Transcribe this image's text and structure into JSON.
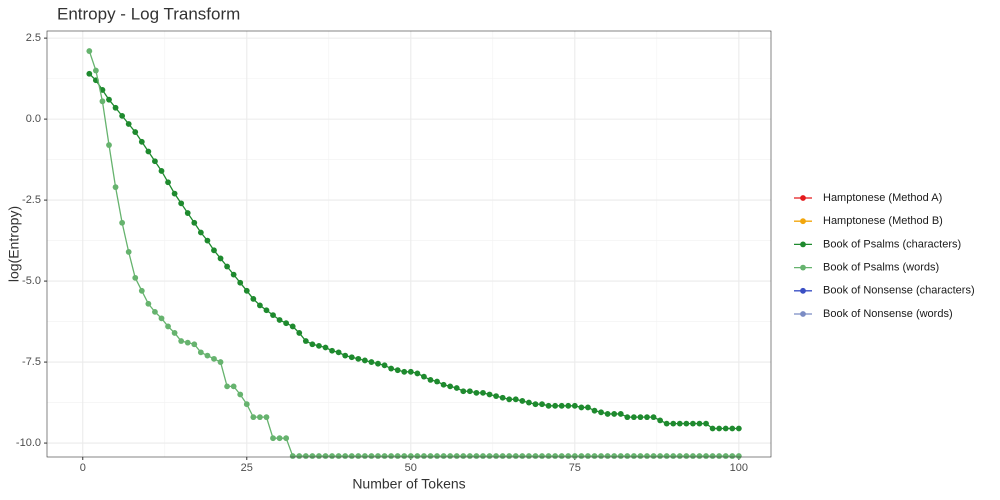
{
  "chart_data": {
    "type": "line",
    "title": "Entropy - Log Transform",
    "xlabel": "Number of Tokens",
    "ylabel": "log(Entropy)",
    "x": [
      1,
      2,
      3,
      4,
      5,
      6,
      7,
      8,
      9,
      10,
      11,
      12,
      13,
      14,
      15,
      16,
      17,
      18,
      19,
      20,
      21,
      22,
      23,
      24,
      25,
      26,
      27,
      28,
      29,
      30,
      31,
      32,
      33,
      34,
      35,
      36,
      37,
      38,
      39,
      40,
      41,
      42,
      43,
      44,
      45,
      46,
      47,
      48,
      49,
      50,
      51,
      52,
      53,
      54,
      55,
      56,
      57,
      58,
      59,
      60,
      61,
      62,
      63,
      64,
      65,
      66,
      67,
      68,
      69,
      70,
      71,
      72,
      73,
      74,
      75,
      76,
      77,
      78,
      79,
      80,
      81,
      82,
      83,
      84,
      85,
      86,
      87,
      88,
      89,
      90,
      91,
      92,
      93,
      94,
      95,
      96,
      97,
      98,
      99,
      100
    ],
    "xlim": [
      -5.45,
      104.9
    ],
    "xticks": [
      0,
      25,
      50,
      75,
      100
    ],
    "ylim": [
      -10.43,
      2.72
    ],
    "yticks": [
      {
        "value": -10,
        "label": "-10.0"
      },
      -7.5,
      {
        "value": -5,
        "label": "-5.0"
      },
      -2.5,
      {
        "value": 0,
        "label": "0.0"
      },
      2.5
    ],
    "grid": true,
    "legend": "right",
    "series": [
      {
        "name": "Hamptonese (Method A)",
        "color": "#e41a1c",
        "values": [
          null,
          null,
          null,
          null,
          null,
          null,
          null,
          null,
          null,
          null,
          null,
          null,
          null,
          null,
          null,
          null,
          null,
          null,
          null,
          null,
          null,
          null,
          null,
          null,
          null,
          null,
          null,
          null,
          null,
          null,
          null,
          null,
          null,
          null,
          null,
          null,
          null,
          null,
          null,
          null,
          null,
          null,
          null,
          null,
          null,
          null,
          null,
          null,
          null,
          null,
          null,
          null,
          null,
          null,
          null,
          null,
          null,
          null,
          null,
          null,
          null,
          null,
          null,
          null,
          null,
          null,
          null,
          null,
          null,
          null,
          null,
          null,
          null,
          null,
          null,
          null,
          null,
          null,
          null,
          null,
          null,
          null,
          null,
          null,
          null,
          null,
          null,
          null,
          null,
          null,
          null,
          null,
          null,
          null,
          null,
          null,
          null,
          null,
          null,
          null
        ]
      },
      {
        "name": "Hamptonese (Method B)",
        "color": "#f2a60c",
        "values": [
          null,
          null,
          null,
          null,
          null,
          null,
          null,
          null,
          null,
          null,
          null,
          null,
          null,
          null,
          null,
          null,
          null,
          null,
          null,
          null,
          null,
          null,
          null,
          null,
          null,
          null,
          null,
          null,
          null,
          null,
          null,
          null,
          null,
          null,
          null,
          null,
          null,
          null,
          null,
          null,
          null,
          null,
          null,
          null,
          null,
          null,
          null,
          null,
          null,
          null,
          null,
          null,
          null,
          null,
          null,
          null,
          null,
          null,
          null,
          null,
          null,
          null,
          null,
          null,
          null,
          null,
          null,
          null,
          null,
          null,
          null,
          null,
          null,
          null,
          null,
          null,
          null,
          null,
          null,
          null,
          null,
          null,
          null,
          null,
          null,
          null,
          null,
          null,
          null,
          null,
          null,
          null,
          null,
          null,
          null,
          null,
          null,
          null,
          null,
          null
        ]
      },
      {
        "name": "Book of Psalms (characters)",
        "color": "#1e8a2e",
        "values": [
          1.4,
          1.2,
          0.9,
          0.6,
          0.35,
          0.1,
          -0.15,
          -0.4,
          -0.7,
          -1.0,
          -1.3,
          -1.6,
          -1.95,
          -2.3,
          -2.6,
          -2.9,
          -3.2,
          -3.5,
          -3.75,
          -4.05,
          -4.3,
          -4.55,
          -4.8,
          -5.05,
          -5.3,
          -5.55,
          -5.75,
          -5.9,
          -6.05,
          -6.2,
          -6.3,
          -6.4,
          -6.6,
          -6.85,
          -6.95,
          -7.0,
          -7.05,
          -7.15,
          -7.2,
          -7.3,
          -7.35,
          -7.4,
          -7.45,
          -7.5,
          -7.55,
          -7.6,
          -7.7,
          -7.75,
          -7.8,
          -7.8,
          -7.85,
          -7.95,
          -8.05,
          -8.1,
          -8.2,
          -8.25,
          -8.3,
          -8.4,
          -8.4,
          -8.45,
          -8.45,
          -8.5,
          -8.55,
          -8.6,
          -8.65,
          -8.65,
          -8.7,
          -8.75,
          -8.8,
          -8.8,
          -8.85,
          -8.85,
          -8.85,
          -8.85,
          -8.85,
          -8.9,
          -8.9,
          -9.0,
          -9.05,
          -9.1,
          -9.1,
          -9.1,
          -9.2,
          -9.2,
          -9.2,
          -9.2,
          -9.2,
          -9.3,
          -9.4,
          -9.4,
          -9.4,
          -9.4,
          -9.4,
          -9.4,
          -9.4,
          -9.55,
          -9.55,
          -9.55,
          -9.55,
          -9.55
        ]
      },
      {
        "name": "Book of Psalms (words)",
        "color": "#66b36e",
        "values": [
          2.1,
          1.5,
          0.55,
          -0.8,
          -2.1,
          -3.2,
          -4.1,
          -4.9,
          -5.3,
          -5.7,
          -5.95,
          -6.15,
          -6.4,
          -6.6,
          -6.85,
          -6.9,
          -6.95,
          -7.2,
          -7.3,
          -7.4,
          -7.5,
          -8.25,
          -8.25,
          -8.5,
          -8.8,
          -9.2,
          -9.2,
          -9.2,
          -9.85,
          -9.85,
          -9.85,
          -10.4,
          -10.4,
          -10.4,
          -10.4,
          -10.4,
          -10.4,
          -10.4,
          -10.4,
          -10.4,
          -10.4,
          -10.4,
          -10.4,
          -10.4,
          -10.4,
          -10.4,
          -10.4,
          -10.4,
          -10.4,
          -10.4,
          -10.4,
          -10.4,
          -10.4,
          -10.4,
          -10.4,
          -10.4,
          -10.4,
          -10.4,
          -10.4,
          -10.4,
          -10.4,
          -10.4,
          -10.4,
          -10.4,
          -10.4,
          -10.4,
          -10.4,
          -10.4,
          -10.4,
          -10.4,
          -10.4,
          -10.4,
          -10.4,
          -10.4,
          -10.4,
          -10.4,
          -10.4,
          -10.4,
          -10.4,
          -10.4,
          -10.4,
          -10.4,
          -10.4,
          -10.4,
          -10.4,
          -10.4,
          -10.4,
          -10.4,
          -10.4,
          -10.4,
          -10.4,
          -10.4,
          -10.4,
          -10.4,
          -10.4,
          -10.4,
          -10.4,
          -10.4,
          -10.4,
          -10.4
        ]
      },
      {
        "name": "Book of Nonsense (characters)",
        "color": "#3a4fc4",
        "values": [
          null,
          null,
          null,
          null,
          null,
          null,
          null,
          null,
          null,
          null,
          null,
          null,
          null,
          null,
          null,
          null,
          null,
          null,
          null,
          null,
          null,
          null,
          null,
          null,
          null,
          null,
          null,
          null,
          null,
          null,
          null,
          null,
          null,
          null,
          null,
          null,
          null,
          null,
          null,
          null,
          null,
          null,
          null,
          null,
          null,
          null,
          null,
          null,
          null,
          null,
          null,
          null,
          null,
          null,
          null,
          null,
          null,
          null,
          null,
          null,
          null,
          null,
          null,
          null,
          null,
          null,
          null,
          null,
          null,
          null,
          null,
          null,
          null,
          null,
          null,
          null,
          null,
          null,
          null,
          null,
          null,
          null,
          null,
          null,
          null,
          null,
          null,
          null,
          null,
          null,
          null,
          null,
          null,
          null,
          null,
          null,
          null,
          null,
          null,
          null
        ]
      },
      {
        "name": "Book of Nonsense (words)",
        "color": "#7b8cc4",
        "values": [
          null,
          null,
          null,
          null,
          null,
          null,
          null,
          null,
          null,
          null,
          null,
          null,
          null,
          null,
          null,
          null,
          null,
          null,
          null,
          null,
          null,
          null,
          null,
          null,
          null,
          null,
          null,
          null,
          null,
          null,
          null,
          null,
          null,
          null,
          null,
          null,
          null,
          null,
          null,
          null,
          null,
          null,
          null,
          null,
          null,
          null,
          null,
          null,
          null,
          null,
          null,
          null,
          null,
          null,
          null,
          null,
          null,
          null,
          null,
          null,
          null,
          null,
          null,
          null,
          null,
          null,
          null,
          null,
          null,
          null,
          null,
          null,
          null,
          null,
          null,
          null,
          null,
          null,
          null,
          null,
          null,
          null,
          null,
          null,
          null,
          null,
          null,
          null,
          null,
          null,
          null,
          null,
          null,
          null,
          null,
          null,
          null,
          null,
          null,
          null
        ]
      }
    ]
  }
}
